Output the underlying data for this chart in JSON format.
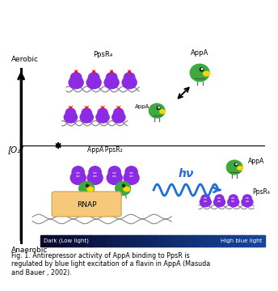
{
  "caption": "Fig. 1. Antirepressor activity of AppA binding to PpsR is\nregulated by blue light excitation of a flavin in AppA (Masuda\nand Bauer , 2002).",
  "label_aerobic": "Aerobic",
  "label_anaerobic": "Anaerobic",
  "label_o2": "[O₂]",
  "label_ppsr4_top": "PpsR₄",
  "label_appa_top": "AppA",
  "label_appa_ppsr2": "AppA PpsR₂",
  "label_rnap": "RNAP",
  "label_ppsr4_bottom": "PpsR₄",
  "label_appa_bottom": "AppA",
  "label_hv": "hν",
  "label_dark": "Dark (Low light)",
  "label_highblue": "High blue light",
  "purple": "#8B2BE2",
  "green": "#3DAA3D",
  "yellow": "#FFD700",
  "peach": "#F5C87A",
  "blue_wave": "#1E6FD9",
  "bg_color": "#FFFFFF"
}
